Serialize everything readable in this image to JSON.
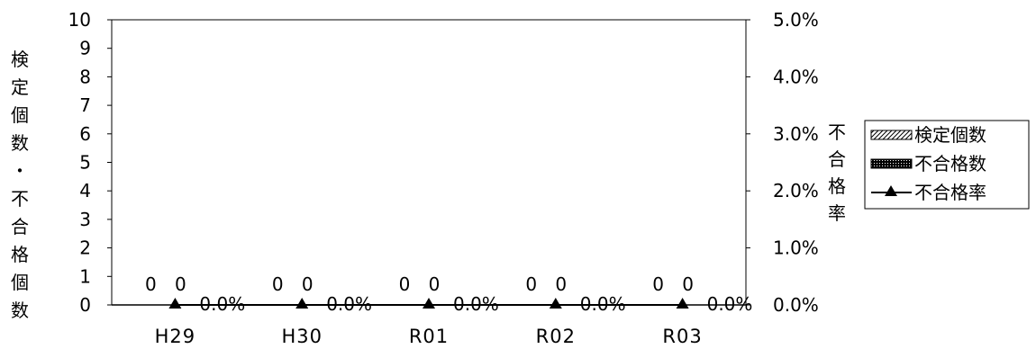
{
  "chart_data": {
    "type": "bar",
    "categories": [
      "H29",
      "H30",
      "R01",
      "R02",
      "R03"
    ],
    "series": [
      {
        "name": "検定個数",
        "type": "bar",
        "axis": "left",
        "values": [
          0,
          0,
          0,
          0,
          0
        ],
        "labels": [
          "0",
          "0",
          "0",
          "0",
          "0"
        ]
      },
      {
        "name": "不合格数",
        "type": "bar",
        "axis": "left",
        "values": [
          0,
          0,
          0,
          0,
          0
        ],
        "labels": [
          "0",
          "0",
          "0",
          "0",
          "0"
        ]
      },
      {
        "name": "不合格率",
        "type": "line",
        "axis": "right",
        "marker": "triangle",
        "values": [
          0.0,
          0.0,
          0.0,
          0.0,
          0.0
        ],
        "labels": [
          "0.0%",
          "0.0%",
          "0.0%",
          "0.0%",
          "0.0%"
        ]
      }
    ],
    "ylabel": "検定個数・不合格個数",
    "y2label": "不合格率",
    "ylim": [
      0,
      10
    ],
    "y2lim": [
      0,
      5.0
    ],
    "yticks": [
      "0",
      "1",
      "2",
      "3",
      "4",
      "5",
      "6",
      "7",
      "8",
      "9",
      "10"
    ],
    "y2ticks": [
      "0.0%",
      "1.0%",
      "2.0%",
      "3.0%",
      "4.0%",
      "5.0%"
    ],
    "legend_position": "right",
    "grid": false
  }
}
